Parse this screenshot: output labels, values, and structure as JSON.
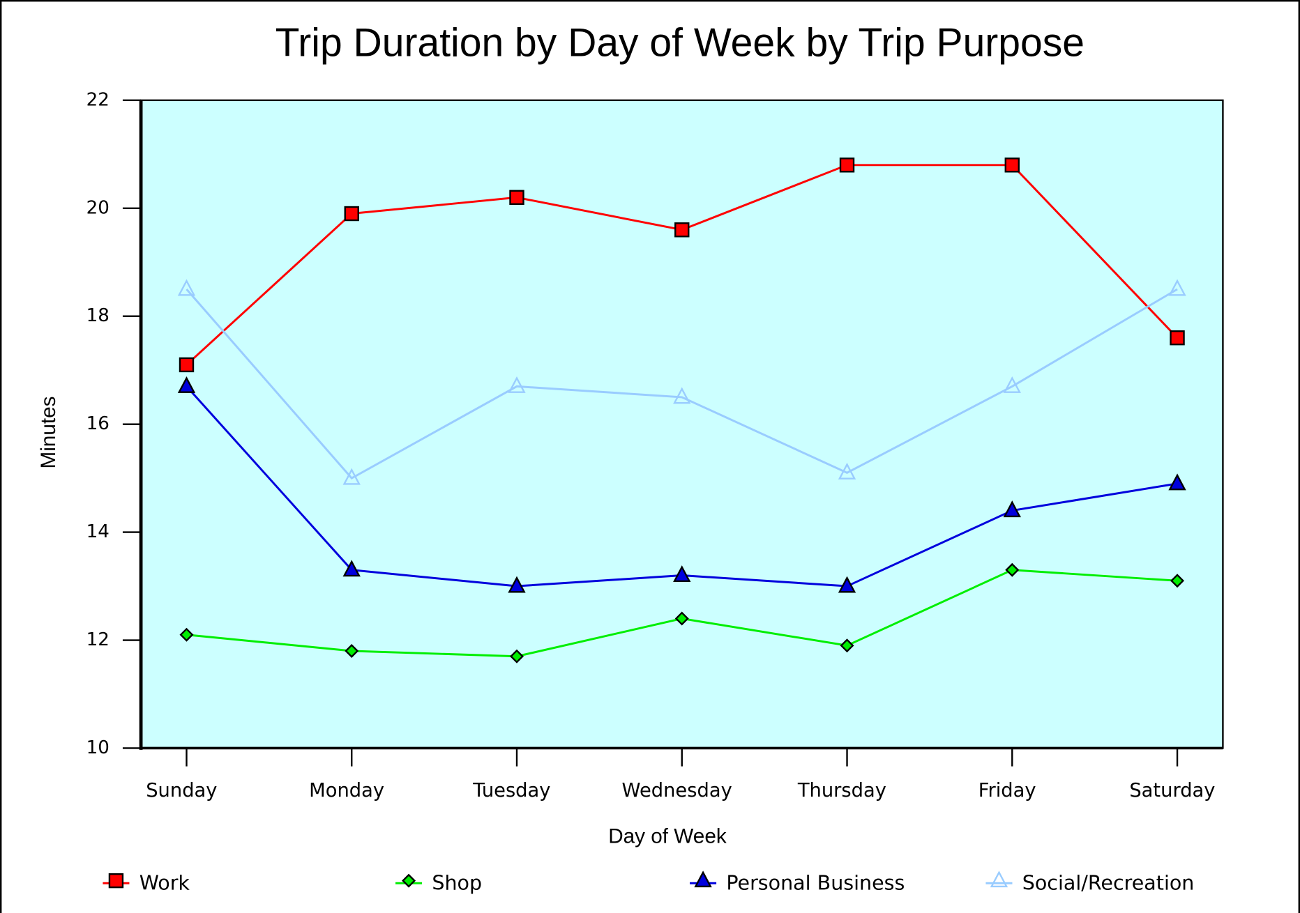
{
  "chart_data": {
    "type": "line",
    "title": "Trip Duration by Day of Week by Trip Purpose",
    "x_label": "Day of Week",
    "y_label": "Minutes",
    "categories": [
      "Sunday",
      "Monday",
      "Tuesday",
      "Wednesday",
      "Thursday",
      "Friday",
      "Saturday"
    ],
    "series": [
      {
        "name": "Work",
        "color": "#ff0000",
        "marker": "square",
        "values": [
          17.1,
          19.9,
          20.2,
          19.6,
          20.8,
          20.8,
          17.6
        ]
      },
      {
        "name": "Shop",
        "color": "#00ee00",
        "marker": "diamond",
        "values": [
          12.1,
          11.8,
          11.7,
          12.4,
          11.9,
          13.3,
          13.1
        ]
      },
      {
        "name": "Personal Business",
        "color": "#0000dd",
        "marker": "triangle",
        "values": [
          16.7,
          13.3,
          13.0,
          13.2,
          13.0,
          14.4,
          14.9
        ]
      },
      {
        "name": "Social/Recreation",
        "color": "#99ccff",
        "marker": "open-triangle",
        "values": [
          18.5,
          15.0,
          16.7,
          16.5,
          15.1,
          16.7,
          18.5
        ]
      }
    ],
    "ylim": [
      10,
      22
    ],
    "yticks": [
      10,
      12,
      14,
      16,
      18,
      20,
      22
    ],
    "plot_background": "#ccffff",
    "legend": "bottom"
  }
}
